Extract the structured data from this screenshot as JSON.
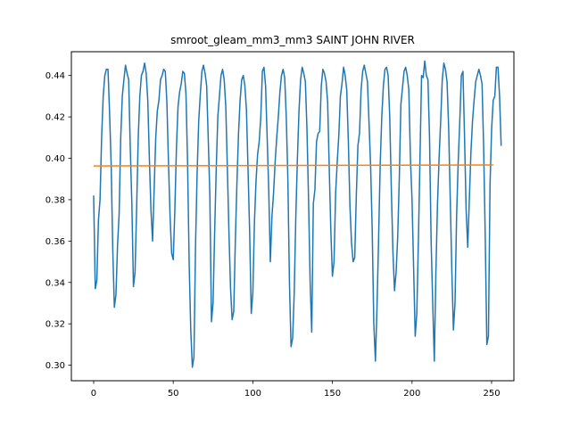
{
  "chart_data": {
    "type": "line",
    "title": "smroot_gleam_mm3_mm3 SAINT JOHN RIVER",
    "xlabel": "",
    "ylabel": "",
    "xlim": [
      -14,
      264
    ],
    "ylim": [
      0.2925,
      0.4515
    ],
    "x_ticks": [
      0,
      50,
      100,
      150,
      200,
      250
    ],
    "y_ticks": [
      0.3,
      0.32,
      0.34,
      0.36,
      0.38,
      0.4,
      0.42,
      0.44
    ],
    "grid": false,
    "legend": "none",
    "series": [
      {
        "color": "#1f77b4",
        "x_start": 0,
        "x_step": 1,
        "values": [
          0.382,
          0.337,
          0.341,
          0.37,
          0.38,
          0.41,
          0.43,
          0.44,
          0.443,
          0.443,
          0.422,
          0.397,
          0.356,
          0.328,
          0.334,
          0.358,
          0.373,
          0.41,
          0.43,
          0.438,
          0.445,
          0.441,
          0.438,
          0.405,
          0.378,
          0.338,
          0.345,
          0.376,
          0.41,
          0.43,
          0.44,
          0.442,
          0.446,
          0.441,
          0.428,
          0.4,
          0.375,
          0.36,
          0.385,
          0.41,
          0.423,
          0.428,
          0.438,
          0.44,
          0.443,
          0.442,
          0.427,
          0.398,
          0.372,
          0.354,
          0.351,
          0.375,
          0.405,
          0.425,
          0.432,
          0.436,
          0.442,
          0.441,
          0.431,
          0.398,
          0.349,
          0.317,
          0.299,
          0.304,
          0.358,
          0.393,
          0.418,
          0.431,
          0.442,
          0.445,
          0.441,
          0.435,
          0.409,
          0.382,
          0.321,
          0.33,
          0.364,
          0.395,
          0.42,
          0.43,
          0.44,
          0.443,
          0.438,
          0.425,
          0.395,
          0.364,
          0.337,
          0.322,
          0.326,
          0.36,
          0.388,
          0.412,
          0.428,
          0.438,
          0.44,
          0.435,
          0.423,
          0.394,
          0.364,
          0.325,
          0.335,
          0.369,
          0.389,
          0.402,
          0.408,
          0.42,
          0.442,
          0.444,
          0.435,
          0.41,
          0.384,
          0.35,
          0.372,
          0.383,
          0.398,
          0.41,
          0.42,
          0.432,
          0.44,
          0.443,
          0.439,
          0.42,
          0.39,
          0.34,
          0.309,
          0.313,
          0.335,
          0.372,
          0.4,
          0.423,
          0.438,
          0.444,
          0.441,
          0.437,
          0.414,
          0.38,
          0.34,
          0.316,
          0.378,
          0.385,
          0.408,
          0.412,
          0.413,
          0.435,
          0.443,
          0.441,
          0.437,
          0.427,
          0.395,
          0.365,
          0.343,
          0.35,
          0.383,
          0.398,
          0.411,
          0.43,
          0.436,
          0.444,
          0.44,
          0.433,
          0.408,
          0.377,
          0.359,
          0.35,
          0.352,
          0.382,
          0.406,
          0.412,
          0.433,
          0.442,
          0.445,
          0.441,
          0.437,
          0.417,
          0.396,
          0.365,
          0.32,
          0.302,
          0.328,
          0.361,
          0.397,
          0.42,
          0.435,
          0.443,
          0.444,
          0.44,
          0.42,
          0.385,
          0.355,
          0.336,
          0.345,
          0.362,
          0.39,
          0.426,
          0.434,
          0.442,
          0.444,
          0.44,
          0.433,
          0.4,
          0.38,
          0.347,
          0.314,
          0.325,
          0.36,
          0.4,
          0.44,
          0.439,
          0.447,
          0.44,
          0.438,
          0.41,
          0.36,
          0.33,
          0.302,
          0.345,
          0.378,
          0.4,
          0.418,
          0.438,
          0.446,
          0.443,
          0.437,
          0.415,
          0.381,
          0.346,
          0.317,
          0.33,
          0.372,
          0.398,
          0.418,
          0.44,
          0.442,
          0.41,
          0.375,
          0.357,
          0.38,
          0.403,
          0.418,
          0.428,
          0.437,
          0.44,
          0.443,
          0.44,
          0.436,
          0.405,
          0.362,
          0.31,
          0.314,
          0.387,
          0.414,
          0.428,
          0.43,
          0.444,
          0.444,
          0.43,
          0.406
        ]
      },
      {
        "color": "#ff7f0e",
        "x": [
          0,
          251
        ],
        "values": [
          0.3963,
          0.3968
        ]
      }
    ]
  }
}
